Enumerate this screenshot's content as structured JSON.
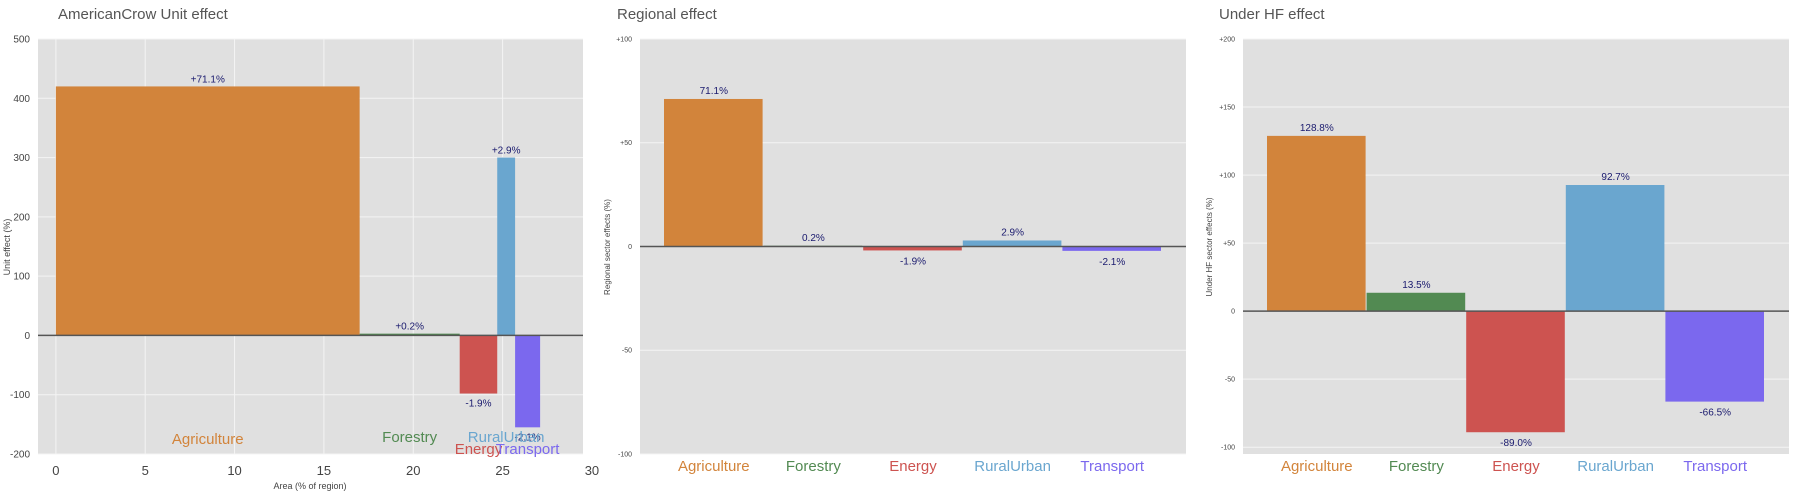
{
  "colors": {
    "panel_bg": "#e0e0e0",
    "grid": "#f4f4f4",
    "zero_line": "#555555",
    "value_label": "#1a1a6e",
    "title": "#555555",
    "axis_text": "#444444",
    "Agriculture": "#d2843b",
    "Forestry": "#528a52",
    "Energy": "#cd5350",
    "RuralUrban": "#6aa6cf",
    "Transport": "#7b68ee"
  },
  "chart_data": [
    {
      "type": "bar",
      "variant": "variable-width",
      "title": "AmericanCrow Unit effect",
      "xlabel": "Area (% of region)",
      "ylabel": "Unit effect (%)",
      "xlim": [
        -1,
        29.5
      ],
      "ylim": [
        -200,
        500
      ],
      "xticks": [
        0,
        5,
        10,
        15,
        20,
        25,
        30
      ],
      "yticks": [
        -200,
        -100,
        0,
        100,
        200,
        300,
        400,
        500
      ],
      "grid": true,
      "legend": "none",
      "sectors": [
        "Agriculture",
        "Forestry",
        "Energy",
        "RuralUrban",
        "Transport"
      ],
      "bars": [
        {
          "sector": "Agriculture",
          "x0": 0,
          "x1": 17,
          "value": 420,
          "label": "+71.1%"
        },
        {
          "sector": "Forestry",
          "x0": 17,
          "x1": 22.6,
          "value": 3,
          "label": "+0.2%"
        },
        {
          "sector": "Energy",
          "x0": 22.6,
          "x1": 24.7,
          "value": -98,
          "label": "-1.9%"
        },
        {
          "sector": "RuralUrban",
          "x0": 24.7,
          "x1": 25.7,
          "value": 300,
          "label": "+2.9%"
        },
        {
          "sector": "Transport",
          "x0": 25.7,
          "x1": 27.1,
          "value": -155,
          "label": "-2.1%"
        }
      ]
    },
    {
      "type": "bar",
      "title": "Regional effect",
      "xlabel": "",
      "ylabel": "Regional sector effects (%)",
      "ylim": [
        -100,
        100
      ],
      "yticks": [
        -100,
        -50,
        0,
        50,
        100
      ],
      "ytick_labels": [
        "-100",
        "-50",
        "0",
        "+50",
        "+100"
      ],
      "grid": true,
      "legend": "none",
      "categories": [
        "Agriculture",
        "Forestry",
        "Energy",
        "RuralUrban",
        "Transport"
      ],
      "values": [
        71.1,
        0.2,
        -1.9,
        2.9,
        -2.1
      ],
      "labels": [
        "71.1%",
        "0.2%",
        "-1.9%",
        "2.9%",
        "-2.1%"
      ]
    },
    {
      "type": "bar",
      "title": "Under HF effect",
      "xlabel": "",
      "ylabel": "Under HF sector effects (%)",
      "ylim": [
        -105,
        200
      ],
      "yticks": [
        -100,
        -50,
        0,
        50,
        100,
        150,
        200
      ],
      "ytick_labels": [
        "-100",
        "-50",
        "0",
        "+50",
        "+100",
        "+150",
        "+200"
      ],
      "grid": true,
      "legend": "none",
      "categories": [
        "Agriculture",
        "Forestry",
        "Energy",
        "RuralUrban",
        "Transport"
      ],
      "values": [
        128.8,
        13.5,
        -89.0,
        92.7,
        -66.5
      ],
      "labels": [
        "128.8%",
        "13.5%",
        "-89.0%",
        "92.7%",
        "-66.5%"
      ]
    }
  ]
}
